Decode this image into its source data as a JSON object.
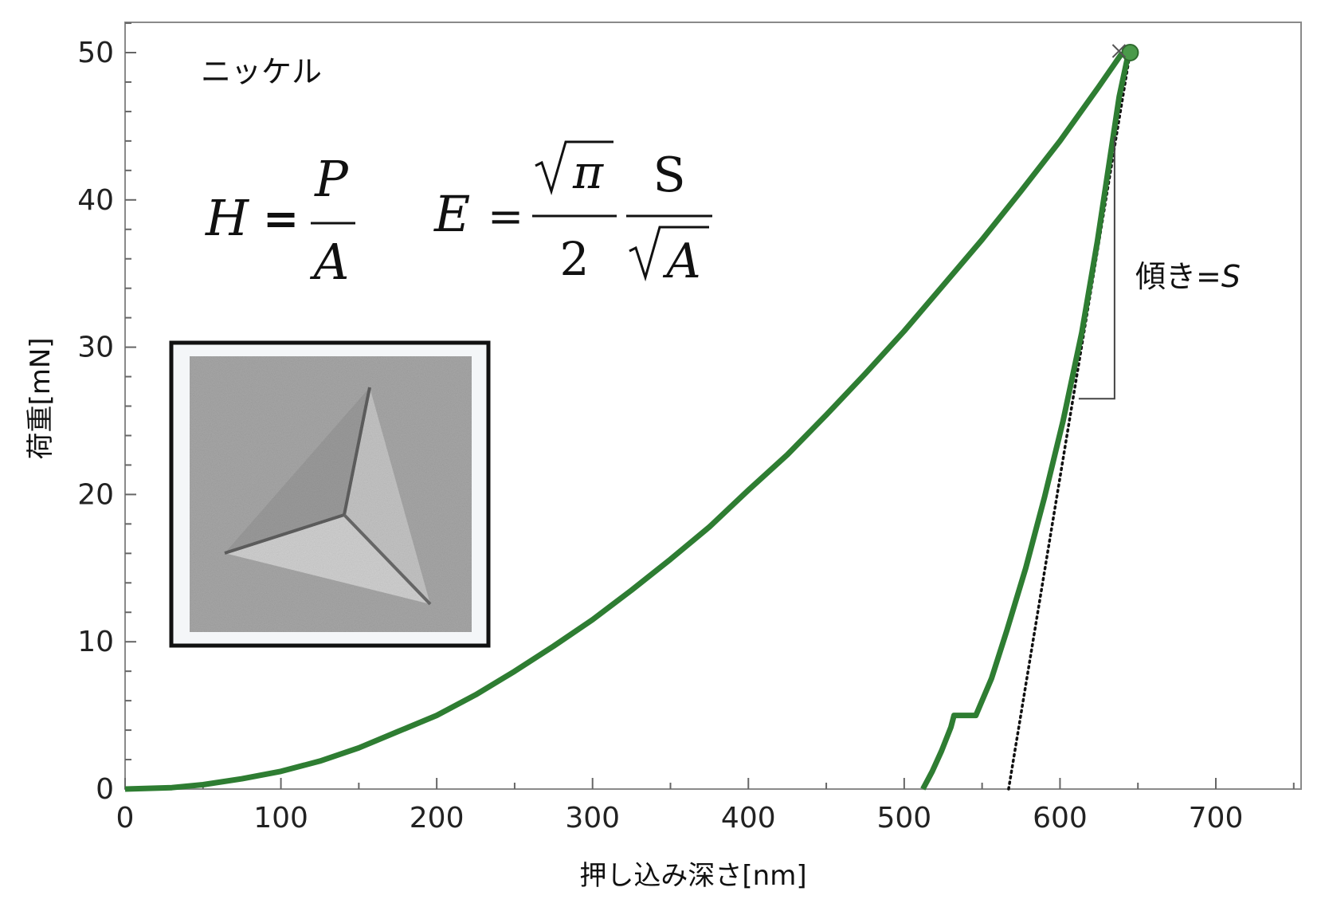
{
  "chart_data": {
    "type": "line",
    "title": "",
    "xlabel": "押し込み深さ[nm]",
    "ylabel": "荷重[mN]",
    "xlim": [
      0,
      760
    ],
    "ylim": [
      0,
      52
    ],
    "x_ticks": [
      0,
      100,
      200,
      300,
      400,
      500,
      600,
      700
    ],
    "y_ticks": [
      0,
      10,
      20,
      30,
      40,
      50
    ],
    "grid": false,
    "legend": "none",
    "series": [
      {
        "name": "",
        "role": "loading",
        "color": "#2e7d32",
        "points": [
          [
            0,
            0
          ],
          [
            30,
            0.1
          ],
          [
            50,
            0.3
          ],
          [
            75,
            0.7
          ],
          [
            100,
            1.2
          ],
          [
            125,
            1.9
          ],
          [
            150,
            2.8
          ],
          [
            175,
            3.9
          ],
          [
            200,
            5.0
          ],
          [
            225,
            6.4
          ],
          [
            250,
            8.0
          ],
          [
            275,
            9.7
          ],
          [
            300,
            11.5
          ],
          [
            325,
            13.5
          ],
          [
            350,
            15.6
          ],
          [
            375,
            17.8
          ],
          [
            400,
            20.3
          ],
          [
            425,
            22.7
          ],
          [
            450,
            25.4
          ],
          [
            475,
            28.2
          ],
          [
            500,
            31.1
          ],
          [
            525,
            34.2
          ],
          [
            550,
            37.3
          ],
          [
            575,
            40.6
          ],
          [
            600,
            44.0
          ],
          [
            625,
            47.7
          ],
          [
            640,
            50.0
          ]
        ]
      },
      {
        "name": "",
        "role": "unloading",
        "color": "#2e7d32",
        "points": [
          [
            512,
            0
          ],
          [
            518,
            1.2
          ],
          [
            524,
            2.6
          ],
          [
            530,
            4.2
          ],
          [
            532,
            5.0
          ],
          [
            546,
            5.0
          ],
          [
            556,
            7.5
          ],
          [
            566,
            10.8
          ],
          [
            578,
            15.0
          ],
          [
            590,
            19.8
          ],
          [
            602,
            25.0
          ],
          [
            614,
            31.0
          ],
          [
            624,
            37.2
          ],
          [
            632,
            42.8
          ],
          [
            638,
            47.0
          ],
          [
            644,
            50.0
          ]
        ]
      },
      {
        "name": "",
        "role": "tangent",
        "color": "#111111",
        "style": "dotted",
        "points": [
          [
            567,
            0
          ],
          [
            645,
            50.0
          ]
        ]
      }
    ],
    "marker": {
      "point": [
        645,
        50.0
      ],
      "color": "#4a9a4a"
    },
    "slope_bracket": {
      "x": 635,
      "y_top": 44.3,
      "y_bottom": 26.5,
      "x_left": 612
    },
    "annotations": {
      "material": "ニッケル",
      "slope_label": "傾き=",
      "slope_symbol": "S",
      "formula_hardness": {
        "lhs": "H",
        "eq": "=",
        "num": "P",
        "den": "A"
      },
      "formula_modulus": {
        "lhs": "E",
        "eq": "=",
        "num1": "π",
        "den1": "2",
        "num2": "S",
        "den2": "A"
      }
    }
  },
  "colors": {
    "curve": "#2e7d32",
    "axis": "#555555",
    "frame": "#888888"
  },
  "inset": {
    "type": "AFM image",
    "subject": "triangular indentation impression",
    "frame_color": "#111111"
  }
}
